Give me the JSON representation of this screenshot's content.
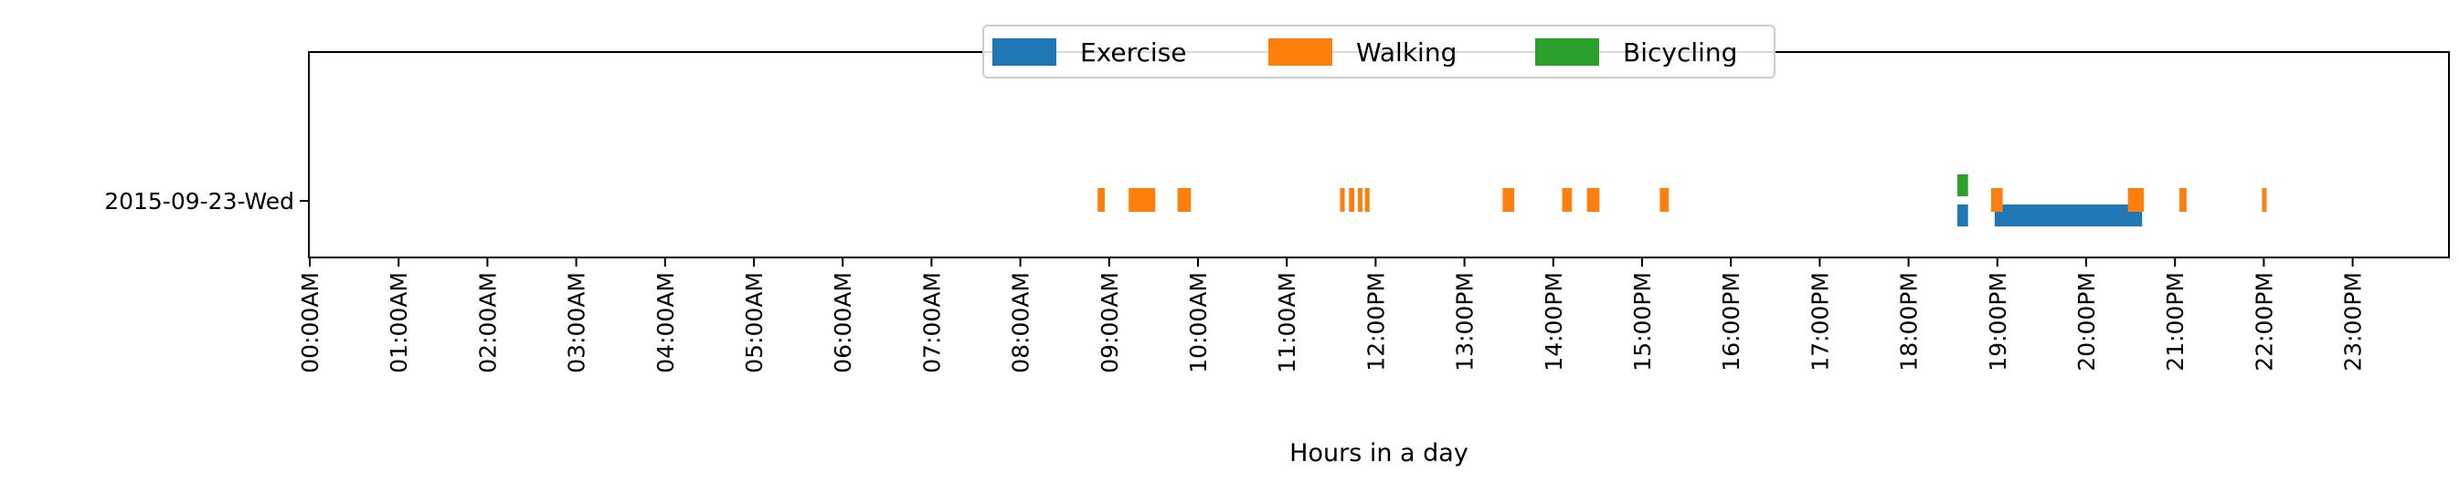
{
  "chart_data": {
    "type": "timeline",
    "title": "",
    "xlabel": "Hours in a day",
    "ylabel": "",
    "x_range_hours": [
      0,
      24
    ],
    "x_ticks": [
      "00:00AM",
      "01:00AM",
      "02:00AM",
      "03:00AM",
      "04:00AM",
      "05:00AM",
      "06:00AM",
      "07:00AM",
      "08:00AM",
      "09:00AM",
      "10:00AM",
      "11:00AM",
      "12:00PM",
      "13:00PM",
      "14:00PM",
      "15:00PM",
      "16:00PM",
      "17:00PM",
      "18:00PM",
      "19:00PM",
      "20:00PM",
      "21:00PM",
      "22:00PM",
      "23:00PM"
    ],
    "rows": [
      "2015-09-23-Wed"
    ],
    "legend": {
      "placement": "top-center",
      "columns": 3
    },
    "grid": false,
    "series": [
      {
        "name": "Exercise",
        "color": "#1f77b4",
        "lane": "lower",
        "intervals": [
          [
            18.55,
            18.67
          ],
          [
            18.97,
            20.63
          ]
        ]
      },
      {
        "name": "Walking",
        "color": "#ff7f0e",
        "intervals": [
          [
            8.87,
            8.95
          ],
          [
            9.22,
            9.52
          ],
          [
            9.77,
            9.92
          ],
          [
            11.6,
            11.65
          ],
          [
            11.7,
            11.76
          ],
          [
            11.8,
            11.84
          ],
          [
            11.88,
            11.92
          ],
          [
            13.43,
            13.56
          ],
          [
            14.1,
            14.21
          ],
          [
            14.38,
            14.52
          ],
          [
            15.2,
            15.3
          ],
          [
            18.93,
            19.06
          ],
          [
            20.47,
            20.65
          ],
          [
            21.05,
            21.13
          ],
          [
            21.98,
            22.02
          ]
        ]
      },
      {
        "name": "Bicycling",
        "color": "#2ca02c",
        "lane": "upper",
        "intervals": [
          [
            18.55,
            18.67
          ]
        ]
      }
    ]
  }
}
